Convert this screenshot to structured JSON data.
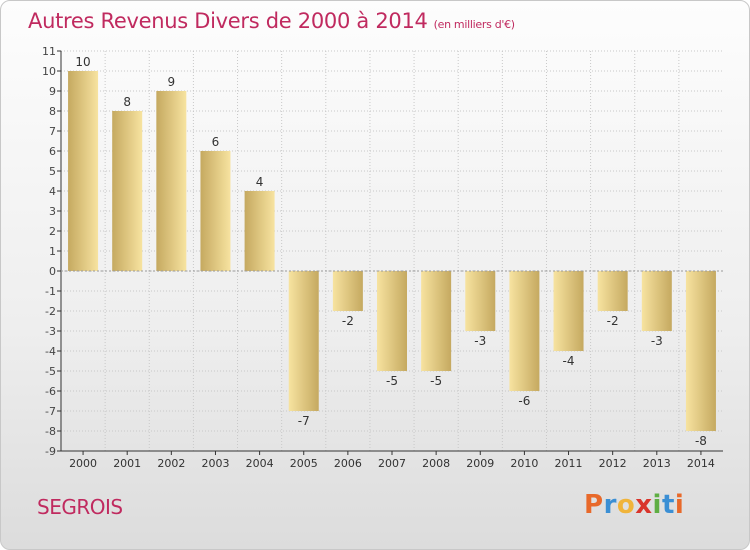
{
  "header": {
    "title": "Autres Revenus Divers de 2000 à 2014",
    "unit": "(en milliers d'€)"
  },
  "footer": {
    "commune": "SEGROIS",
    "logo_letters": [
      "P",
      "r",
      "o",
      "x",
      "i",
      "t",
      "i"
    ]
  },
  "colors": {
    "title": "#c02a5f",
    "bar_light": "#f7e3a0",
    "bar_dark": "#c9ad65",
    "axis": "#333333",
    "grid": "#c8c8c8"
  },
  "chart_data": {
    "type": "bar",
    "categories": [
      "2000",
      "2001",
      "2002",
      "2003",
      "2004",
      "2005",
      "2006",
      "2007",
      "2008",
      "2009",
      "2010",
      "2011",
      "2012",
      "2013",
      "2014"
    ],
    "values": [
      10,
      8,
      9,
      6,
      4,
      -7,
      -2,
      -5,
      -5,
      -3,
      -6,
      -4,
      -2,
      -3,
      -8
    ],
    "value_labels": [
      "10",
      "8",
      "9",
      "6",
      "4",
      "-7",
      "-2",
      "-5",
      "-5",
      "-3",
      "-6",
      "-4",
      "-2",
      "-3",
      "-8"
    ],
    "y_tick_labels": [
      "11",
      "10",
      "9",
      "8",
      "7",
      "6",
      "5",
      "4",
      "3",
      "2",
      "1",
      "0",
      "-1",
      "-2",
      "-3",
      "-4",
      "-5",
      "-6",
      "-7",
      "-8",
      "-9"
    ],
    "title": "Autres Revenus Divers de 2000 à 2014",
    "xlabel": "",
    "ylabel": "",
    "ylim": [
      -9,
      11
    ],
    "grid": true,
    "legend": "none"
  }
}
